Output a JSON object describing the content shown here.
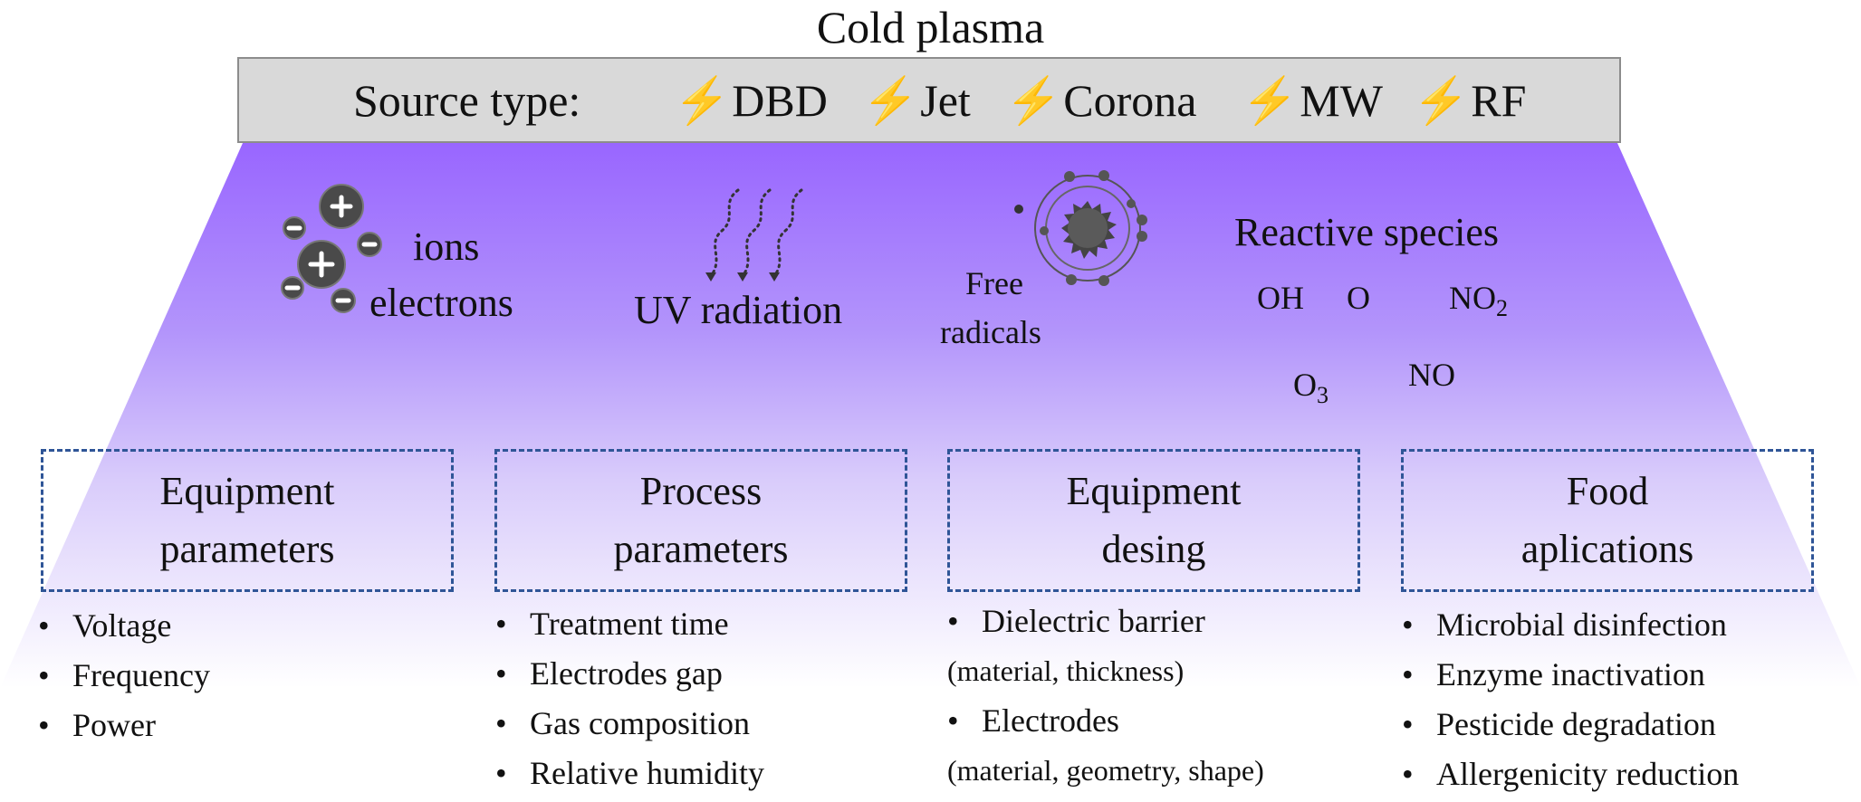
{
  "title": "Cold plasma",
  "source_bar": {
    "label": "Source type:",
    "bolt_glyph": "⚡",
    "items": [
      "DBD",
      "Jet",
      "Corona",
      "MW",
      "RF"
    ]
  },
  "colors": {
    "gradient_top": "#9966ff",
    "gradient_bottom": "#ffffff",
    "box_border": "#2f5597",
    "bar_fill": "#d9d9d9",
    "icon_gray": "#4a4a4a"
  },
  "species": {
    "ions": "ions",
    "electrons": "electrons",
    "uv": "UV radiation",
    "free_radicals_line1": "Free",
    "free_radicals_line2": "radicals",
    "reactive_title": "Reactive species",
    "oh": "OH",
    "o": "O",
    "no2_base": "NO",
    "no2_sub": "2",
    "o3_base": "O",
    "o3_sub": "3",
    "no": "NO"
  },
  "icons": {
    "charges": "ion-electron-icon",
    "uv": "uv-waves-icon",
    "radical": "atom-radical-icon"
  },
  "columns": [
    {
      "heading_line1": "Equipment",
      "heading_line2": "parameters",
      "items": [
        "Voltage",
        "Frequency",
        "Power"
      ]
    },
    {
      "heading_line1": "Process",
      "heading_line2": "parameters",
      "items": [
        "Treatment time",
        "Electrodes gap",
        "Gas composition",
        "Relative humidity"
      ]
    },
    {
      "heading_line1": "Equipment",
      "heading_line2": "desing",
      "items": [
        "Dielectric barrier",
        "(material,  thickness)",
        "Electrodes",
        "(material,  geometry, shape)"
      ]
    },
    {
      "heading_line1": "Food",
      "heading_line2": "aplications",
      "items": [
        "Microbial disinfection",
        "Enzyme inactivation",
        "Pesticide degradation",
        "Allergenicity  reduction"
      ]
    }
  ]
}
